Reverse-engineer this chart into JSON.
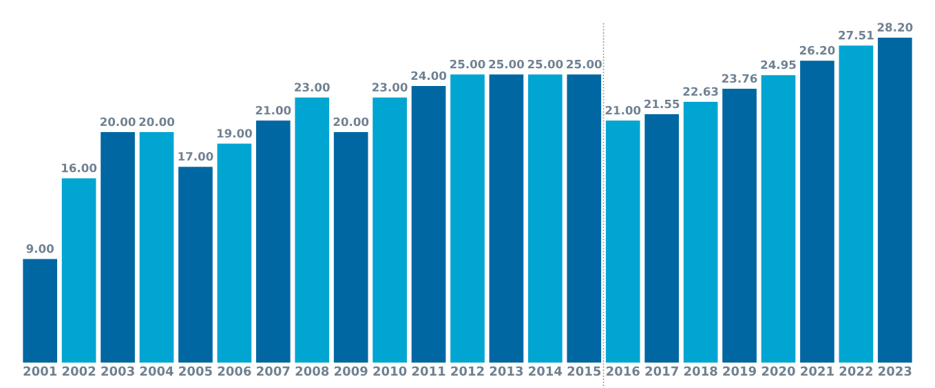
{
  "chart_data": {
    "type": "bar",
    "categories": [
      "2001",
      "2002",
      "2003",
      "2004",
      "2005",
      "2006",
      "2007",
      "2008",
      "2009",
      "2010",
      "2011",
      "2012",
      "2013",
      "2014",
      "2015",
      "2016",
      "2017",
      "2018",
      "2019",
      "2020",
      "2021",
      "2022",
      "2023"
    ],
    "values": [
      9.0,
      16.0,
      20.0,
      20.0,
      17.0,
      19.0,
      21.0,
      23.0,
      20.0,
      23.0,
      24.0,
      25.0,
      25.0,
      25.0,
      25.0,
      21.0,
      21.55,
      22.63,
      23.76,
      24.95,
      26.2,
      27.51,
      28.2
    ],
    "value_labels": [
      "9.00",
      "16.00",
      "20.00",
      "20.00",
      "17.00",
      "19.00",
      "21.00",
      "23.00",
      "20.00",
      "23.00",
      "24.00",
      "25.00",
      "25.00",
      "25.00",
      "25.00",
      "21.00",
      "21.55",
      "22.63",
      "23.76",
      "24.95",
      "26.20",
      "27.51",
      "28.20"
    ],
    "colors": [
      "#0067a3",
      "#00a5d2",
      "#0067a3",
      "#00a5d2",
      "#0067a3",
      "#00a5d2",
      "#0067a3",
      "#00a5d2",
      "#0067a3",
      "#00a5d2",
      "#0067a3",
      "#00a5d2",
      "#0067a3",
      "#00a5d2",
      "#0067a3",
      "#00a5d2",
      "#0067a3",
      "#00a5d2",
      "#0067a3",
      "#00a5d2",
      "#0067a3",
      "#00a5d2",
      "#0067a3"
    ],
    "tick_labels": "x",
    "grid": false,
    "legend": false
  }
}
